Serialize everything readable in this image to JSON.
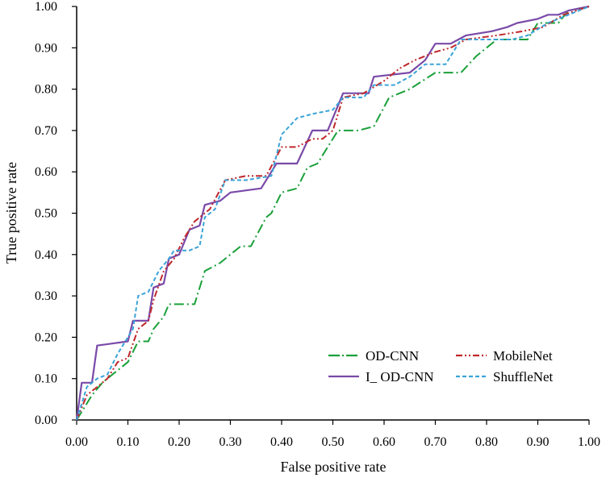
{
  "chart_data": {
    "type": "line",
    "title": "",
    "xlabel": "False positive rate",
    "ylabel": "True positive rate",
    "xlim": [
      0,
      1
    ],
    "ylim": [
      0,
      1
    ],
    "xticks": [
      "0.00",
      "0.10",
      "0.20",
      "0.30",
      "0.40",
      "0.50",
      "0.60",
      "0.70",
      "0.80",
      "0.90",
      "1.00"
    ],
    "yticks": [
      "0.00",
      "0.10",
      "0.20",
      "0.30",
      "0.40",
      "0.50",
      "0.60",
      "0.70",
      "0.80",
      "0.90",
      "1.00"
    ],
    "grid": false,
    "legend": "bottom-right",
    "series": [
      {
        "name": "OD-CNN",
        "color": "#1aa03a",
        "dash": "dashdot-long",
        "points": [
          [
            0,
            0
          ],
          [
            0.03,
            0.06
          ],
          [
            0.05,
            0.09
          ],
          [
            0.08,
            0.12
          ],
          [
            0.1,
            0.14
          ],
          [
            0.12,
            0.19
          ],
          [
            0.14,
            0.19
          ],
          [
            0.15,
            0.22
          ],
          [
            0.17,
            0.25
          ],
          [
            0.18,
            0.28
          ],
          [
            0.2,
            0.28
          ],
          [
            0.23,
            0.28
          ],
          [
            0.25,
            0.36
          ],
          [
            0.28,
            0.38
          ],
          [
            0.3,
            0.4
          ],
          [
            0.32,
            0.42
          ],
          [
            0.34,
            0.42
          ],
          [
            0.37,
            0.49
          ],
          [
            0.38,
            0.5
          ],
          [
            0.4,
            0.55
          ],
          [
            0.43,
            0.56
          ],
          [
            0.45,
            0.61
          ],
          [
            0.47,
            0.62
          ],
          [
            0.49,
            0.66
          ],
          [
            0.51,
            0.7
          ],
          [
            0.55,
            0.7
          ],
          [
            0.58,
            0.71
          ],
          [
            0.61,
            0.78
          ],
          [
            0.65,
            0.8
          ],
          [
            0.7,
            0.84
          ],
          [
            0.75,
            0.84
          ],
          [
            0.78,
            0.88
          ],
          [
            0.82,
            0.92
          ],
          [
            0.88,
            0.92
          ],
          [
            0.9,
            0.96
          ],
          [
            0.94,
            0.96
          ],
          [
            0.96,
            0.99
          ],
          [
            1.0,
            1.0
          ]
        ]
      },
      {
        "name": "I_ OD-CNN",
        "color": "#7a4aa8",
        "dash": "solid",
        "points": [
          [
            0,
            0
          ],
          [
            0.01,
            0.09
          ],
          [
            0.03,
            0.09
          ],
          [
            0.04,
            0.18
          ],
          [
            0.1,
            0.19
          ],
          [
            0.11,
            0.24
          ],
          [
            0.14,
            0.24
          ],
          [
            0.15,
            0.32
          ],
          [
            0.17,
            0.33
          ],
          [
            0.18,
            0.39
          ],
          [
            0.2,
            0.4
          ],
          [
            0.22,
            0.46
          ],
          [
            0.24,
            0.47
          ],
          [
            0.25,
            0.52
          ],
          [
            0.28,
            0.53
          ],
          [
            0.3,
            0.55
          ],
          [
            0.36,
            0.56
          ],
          [
            0.39,
            0.62
          ],
          [
            0.43,
            0.62
          ],
          [
            0.46,
            0.7
          ],
          [
            0.49,
            0.7
          ],
          [
            0.52,
            0.79
          ],
          [
            0.57,
            0.79
          ],
          [
            0.58,
            0.83
          ],
          [
            0.65,
            0.84
          ],
          [
            0.68,
            0.87
          ],
          [
            0.7,
            0.91
          ],
          [
            0.73,
            0.91
          ],
          [
            0.76,
            0.93
          ],
          [
            0.81,
            0.94
          ],
          [
            0.84,
            0.95
          ],
          [
            0.86,
            0.96
          ],
          [
            0.9,
            0.97
          ],
          [
            0.92,
            0.98
          ],
          [
            0.94,
            0.98
          ],
          [
            0.96,
            0.99
          ],
          [
            1.0,
            1.0
          ]
        ]
      },
      {
        "name": "MobileNet",
        "color": "#c0282d",
        "dash": "dashdotdot",
        "points": [
          [
            0,
            0
          ],
          [
            0.02,
            0.06
          ],
          [
            0.04,
            0.08
          ],
          [
            0.06,
            0.1
          ],
          [
            0.08,
            0.14
          ],
          [
            0.1,
            0.15
          ],
          [
            0.12,
            0.22
          ],
          [
            0.14,
            0.24
          ],
          [
            0.15,
            0.29
          ],
          [
            0.17,
            0.36
          ],
          [
            0.19,
            0.39
          ],
          [
            0.21,
            0.44
          ],
          [
            0.23,
            0.48
          ],
          [
            0.25,
            0.5
          ],
          [
            0.26,
            0.51
          ],
          [
            0.29,
            0.58
          ],
          [
            0.33,
            0.59
          ],
          [
            0.37,
            0.59
          ],
          [
            0.4,
            0.66
          ],
          [
            0.43,
            0.66
          ],
          [
            0.46,
            0.68
          ],
          [
            0.48,
            0.68
          ],
          [
            0.5,
            0.7
          ],
          [
            0.52,
            0.78
          ],
          [
            0.56,
            0.79
          ],
          [
            0.6,
            0.82
          ],
          [
            0.63,
            0.85
          ],
          [
            0.66,
            0.87
          ],
          [
            0.7,
            0.89
          ],
          [
            0.73,
            0.9
          ],
          [
            0.76,
            0.92
          ],
          [
            0.82,
            0.93
          ],
          [
            0.87,
            0.94
          ],
          [
            0.91,
            0.95
          ],
          [
            0.95,
            0.98
          ],
          [
            1.0,
            1.0
          ]
        ]
      },
      {
        "name": "ShuffleNet",
        "color": "#3aa3d8",
        "dash": "short-dash",
        "points": [
          [
            0,
            0
          ],
          [
            0.02,
            0.08
          ],
          [
            0.04,
            0.1
          ],
          [
            0.06,
            0.11
          ],
          [
            0.08,
            0.16
          ],
          [
            0.1,
            0.2
          ],
          [
            0.11,
            0.22
          ],
          [
            0.12,
            0.3
          ],
          [
            0.14,
            0.31
          ],
          [
            0.16,
            0.36
          ],
          [
            0.18,
            0.39
          ],
          [
            0.19,
            0.41
          ],
          [
            0.22,
            0.41
          ],
          [
            0.24,
            0.42
          ],
          [
            0.25,
            0.49
          ],
          [
            0.27,
            0.51
          ],
          [
            0.29,
            0.58
          ],
          [
            0.33,
            0.58
          ],
          [
            0.38,
            0.59
          ],
          [
            0.4,
            0.69
          ],
          [
            0.43,
            0.73
          ],
          [
            0.46,
            0.74
          ],
          [
            0.5,
            0.75
          ],
          [
            0.52,
            0.78
          ],
          [
            0.56,
            0.78
          ],
          [
            0.58,
            0.81
          ],
          [
            0.62,
            0.81
          ],
          [
            0.65,
            0.83
          ],
          [
            0.68,
            0.86
          ],
          [
            0.72,
            0.86
          ],
          [
            0.75,
            0.92
          ],
          [
            0.78,
            0.92
          ],
          [
            0.82,
            0.92
          ],
          [
            0.85,
            0.92
          ],
          [
            0.88,
            0.93
          ],
          [
            0.92,
            0.96
          ],
          [
            0.96,
            0.98
          ],
          [
            1.0,
            1.0
          ]
        ]
      }
    ]
  }
}
